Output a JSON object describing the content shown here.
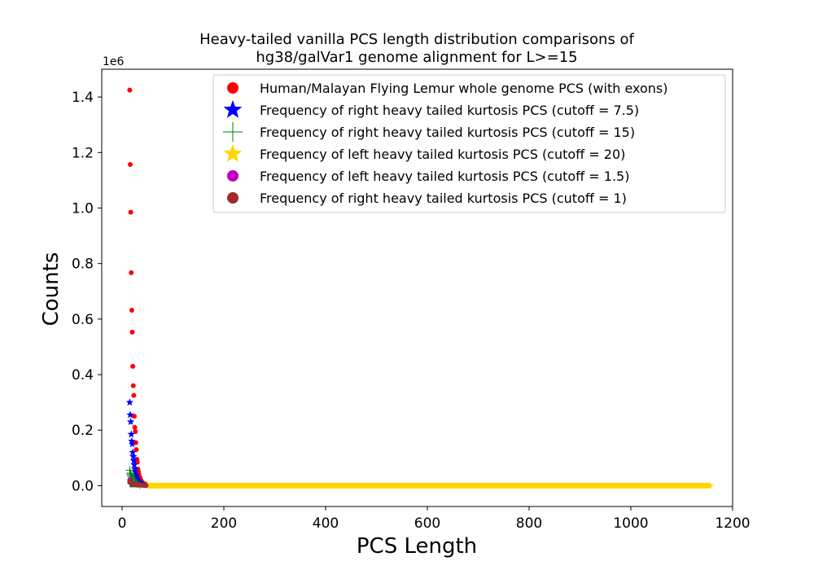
{
  "chart_data": {
    "type": "scatter",
    "title_lines": [
      "Heavy-tailed vanilla PCS length distribution comparisons of",
      "hg38/galVar1 genome alignment for L>=15"
    ],
    "xlabel": "PCS Length",
    "ylabel": "Counts",
    "y_offset_label": "1e6",
    "xlim": [
      -40,
      1200
    ],
    "ylim": [
      -0.075,
      1.5
    ],
    "xticks": [
      0,
      200,
      400,
      600,
      800,
      1000,
      1200
    ],
    "yticks": [
      0.0,
      0.2,
      0.4,
      0.6,
      0.8,
      1.0,
      1.2,
      1.4
    ],
    "ytick_labels": [
      "0.0",
      "0.2",
      "0.4",
      "0.6",
      "0.8",
      "1.0",
      "1.2",
      "1.4"
    ],
    "y_unit_multiplier": 1000000,
    "legend_position": "upper right",
    "series": [
      {
        "name": "Human/Malayan Flying Lemur whole genome PCS (with exons)",
        "marker": "circle",
        "color": "#ff0000",
        "x": [
          15,
          16,
          17,
          18,
          19,
          20,
          21,
          22,
          23,
          24,
          25,
          26,
          27,
          28,
          29,
          30,
          31,
          32,
          33,
          35,
          37,
          40,
          45
        ],
        "y": [
          1.425,
          1.157,
          0.985,
          0.767,
          0.632,
          0.553,
          0.43,
          0.36,
          0.325,
          0.25,
          0.21,
          0.195,
          0.155,
          0.13,
          0.095,
          0.085,
          0.06,
          0.05,
          0.04,
          0.03,
          0.02,
          0.012,
          0.006
        ]
      },
      {
        "name": "Frequency of right heavy tailed kurtosis PCS (cutoff = 7.5)",
        "marker": "star",
        "color": "#0000ff",
        "x": [
          15,
          16,
          17,
          18,
          19,
          20,
          21,
          22,
          23,
          24,
          25,
          26,
          27,
          28,
          30,
          32,
          35,
          40
        ],
        "y": [
          0.3,
          0.255,
          0.23,
          0.185,
          0.16,
          0.15,
          0.12,
          0.105,
          0.09,
          0.075,
          0.06,
          0.05,
          0.04,
          0.033,
          0.025,
          0.018,
          0.012,
          0.006
        ]
      },
      {
        "name": "Frequency of right heavy tailed kurtosis PCS (cutoff = 15)",
        "marker": "plus",
        "color": "#008000",
        "x": [
          15,
          16,
          17,
          18,
          19,
          20,
          22,
          24,
          26,
          28,
          30,
          35
        ],
        "y": [
          0.055,
          0.045,
          0.04,
          0.035,
          0.03,
          0.025,
          0.02,
          0.015,
          0.012,
          0.009,
          0.007,
          0.004
        ]
      },
      {
        "name": "Frequency of left heavy tailed kurtosis PCS (cutoff = 20)",
        "marker": "star",
        "color": "#ffd700",
        "x": [
          50,
          1155
        ],
        "y": [
          0.002,
          0.0
        ]
      },
      {
        "name": "Frequency of left heavy tailed kurtosis PCS (cutoff = 1.5)",
        "marker": "circle",
        "color": "#bf00bf",
        "x": [
          15,
          16,
          17,
          18,
          19,
          20,
          22,
          24,
          26,
          28,
          30
        ],
        "y": [
          0.02,
          0.016,
          0.013,
          0.011,
          0.009,
          0.007,
          0.006,
          0.005,
          0.004,
          0.003,
          0.002
        ]
      },
      {
        "name": "Frequency of right heavy tailed kurtosis PCS (cutoff = 1)",
        "marker": "circle",
        "color": "#a52a2a",
        "x": [
          15,
          17,
          19,
          21,
          23,
          25,
          27,
          29,
          31,
          33,
          35,
          38,
          41,
          44,
          47
        ],
        "y": [
          0.012,
          0.01,
          0.008,
          0.007,
          0.006,
          0.005,
          0.004,
          0.004,
          0.003,
          0.003,
          0.002,
          0.002,
          0.001,
          0.001,
          0.0
        ]
      }
    ]
  }
}
